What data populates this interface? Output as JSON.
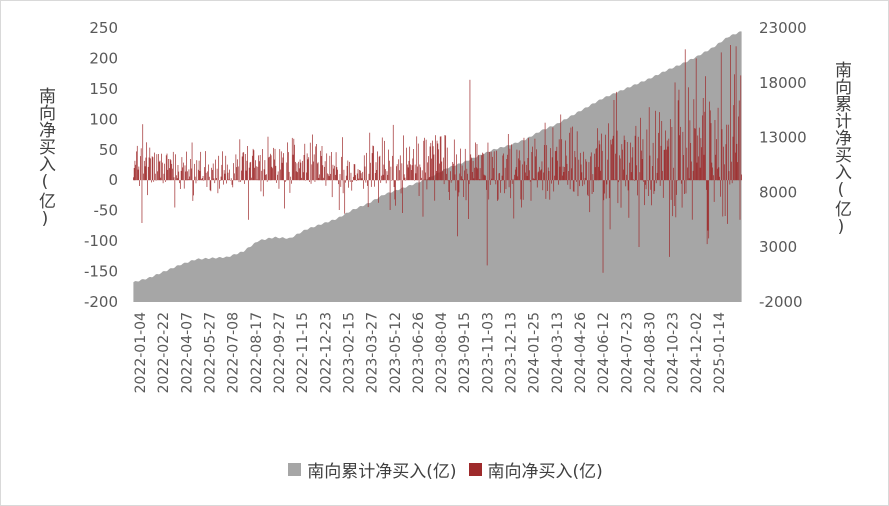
{
  "chart_data": {
    "type": "bar+area",
    "title": "",
    "xlabel": "",
    "ylabel_left": "南向净买入(亿)",
    "ylabel_right": "南向累计净买入(亿)",
    "y_left": {
      "min": -200,
      "max": 250,
      "ticks": [
        250,
        200,
        150,
        100,
        50,
        0,
        -50,
        -100,
        -150,
        -200
      ]
    },
    "y_right": {
      "min": -2000,
      "max": 23000,
      "ticks": [
        23000,
        18000,
        13000,
        8000,
        3000,
        -2000
      ]
    },
    "x_tick_labels": [
      "2022-01-04",
      "2022-02-22",
      "2022-04-07",
      "2022-05-27",
      "2022-07-08",
      "2022-08-17",
      "2022-09-27",
      "2022-11-15",
      "2022-12-23",
      "2023-02-15",
      "2023-03-27",
      "2023-05-12",
      "2023-06-26",
      "2023-08-04",
      "2023-09-15",
      "2023-11-03",
      "2023-12-13",
      "2024-01-25",
      "2024-03-13",
      "2024-04-26",
      "2024-06-12",
      "2024-07-23",
      "2024-08-30",
      "2024-10-23",
      "2024-12-02",
      "2025-01-14"
    ],
    "legend": {
      "position": "bottom"
    },
    "grid": false,
    "series": [
      {
        "name": "南向累计净买入(亿)",
        "type": "area",
        "axis": "right",
        "color": "#a6a6a6",
        "anchor_index": [
          0,
          20,
          40,
          60,
          80,
          100,
          120,
          140,
          160,
          180,
          200,
          220,
          240,
          260,
          280,
          300,
          320,
          340,
          360,
          380,
          400,
          420,
          440,
          460,
          480,
          500,
          520,
          540,
          560,
          580,
          600,
          620,
          640,
          660,
          680,
          700,
          720,
          740,
          760,
          777
        ],
        "anchor_values": [
          -200,
          200,
          800,
          1400,
          1900,
          2000,
          2100,
          2600,
          3600,
          3900,
          3800,
          4600,
          5100,
          5600,
          6400,
          7000,
          7800,
          8300,
          8800,
          9400,
          10200,
          10700,
          11300,
          11900,
          12300,
          12800,
          13600,
          14200,
          15000,
          15800,
          16600,
          17200,
          17800,
          18400,
          19100,
          19700,
          20400,
          21200,
          22200,
          22700
        ]
      },
      {
        "name": "南向净买入(亿)",
        "type": "bar",
        "axis": "left",
        "color": "#9e2a2b",
        "count": 778,
        "phases": [
          {
            "until": 60,
            "mean": 22,
            "spread": 34
          },
          {
            "until": 130,
            "mean": 10,
            "spread": 30
          },
          {
            "until": 230,
            "mean": 24,
            "spread": 42
          },
          {
            "until": 300,
            "mean": 20,
            "spread": 40
          },
          {
            "until": 400,
            "mean": 26,
            "spread": 55
          },
          {
            "until": 500,
            "mean": 18,
            "spread": 52
          },
          {
            "until": 600,
            "mean": 28,
            "spread": 60
          },
          {
            "until": 680,
            "mean": 34,
            "spread": 75
          },
          {
            "until": 778,
            "mean": 55,
            "spread": 95
          }
        ],
        "spikes": [
          {
            "index": 12,
            "value": 92
          },
          {
            "index": 75,
            "value": 62
          },
          {
            "index": 430,
            "value": 165
          },
          {
            "index": 452,
            "value": -140
          },
          {
            "index": 546,
            "value": 108
          },
          {
            "index": 617,
            "value": 145
          },
          {
            "index": 659,
            "value": 120
          },
          {
            "index": 705,
            "value": 215
          },
          {
            "index": 719,
            "value": 200
          },
          {
            "index": 733,
            "value": -105
          },
          {
            "index": 751,
            "value": 210
          },
          {
            "index": 763,
            "value": 222
          },
          {
            "index": 770,
            "value": 220
          },
          {
            "index": 775,
            "value": -65
          }
        ]
      }
    ]
  }
}
